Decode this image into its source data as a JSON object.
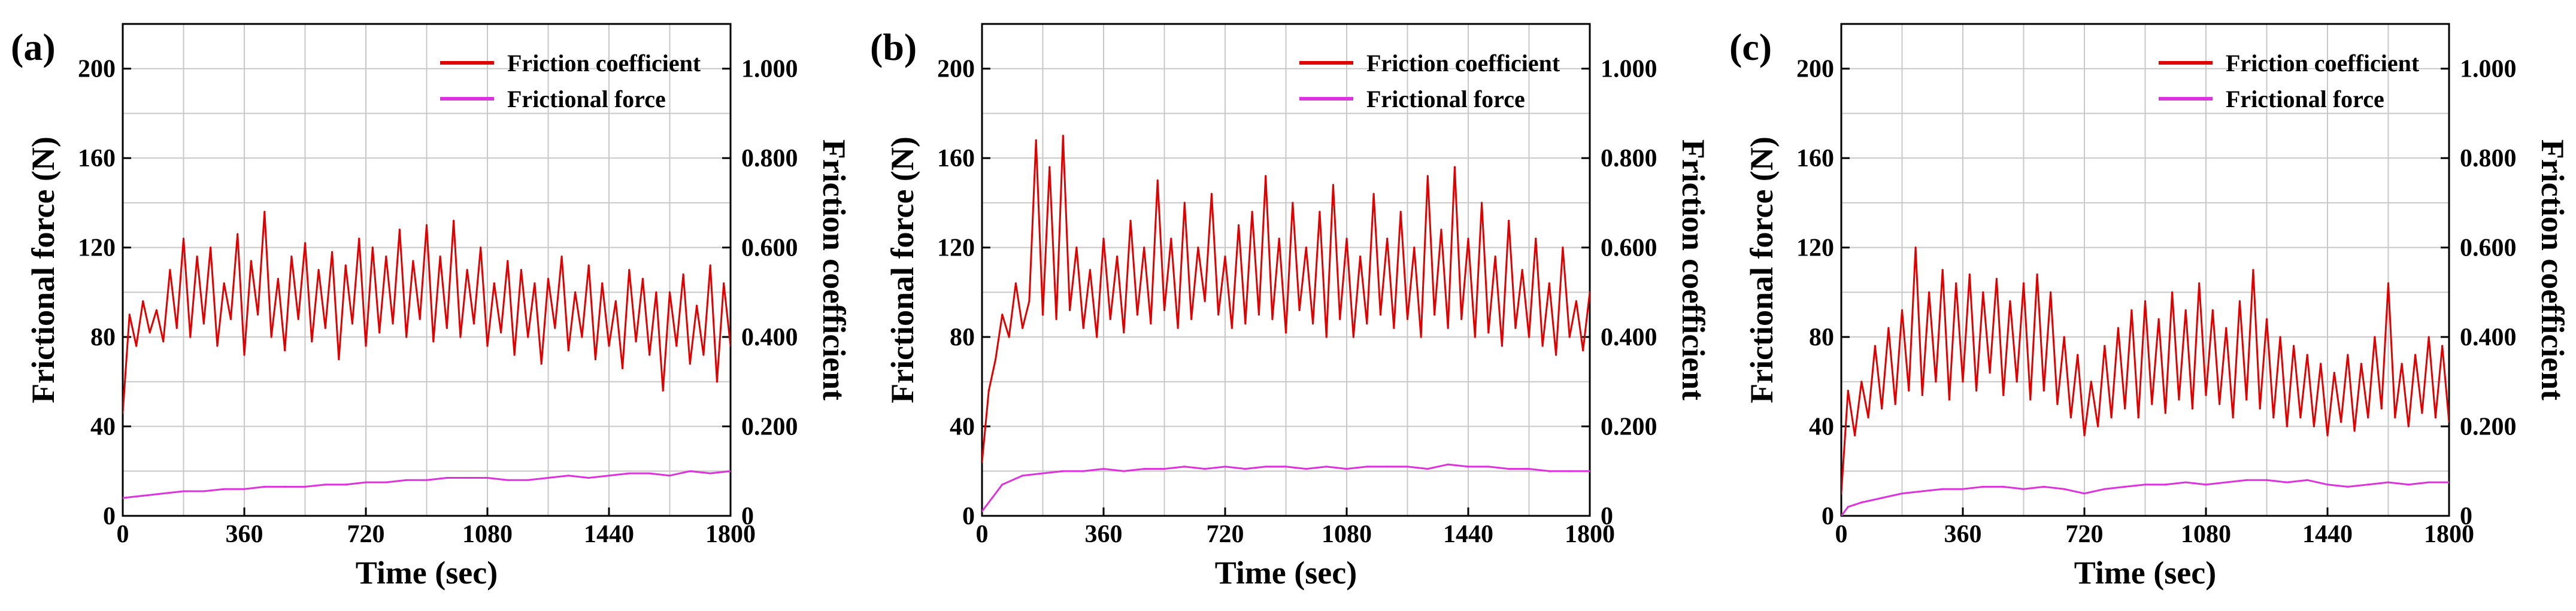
{
  "figure": {
    "panels": [
      "(a)",
      "(b)",
      "(c)"
    ]
  },
  "chart_data": [
    {
      "type": "line",
      "panel_label": "(a)",
      "xlabel": "Time (sec)",
      "ylabel": "Frictional force (N)",
      "y2label": "Friction coefficient",
      "xlim": [
        0,
        1800
      ],
      "ylim": [
        0,
        220
      ],
      "y2lim": [
        0,
        1.1
      ],
      "x_ticks": [
        "0",
        "360",
        "720",
        "1080",
        "1440",
        "1800"
      ],
      "y_ticks": [
        "0",
        "40",
        "80",
        "120",
        "160",
        "200"
      ],
      "y2_ticks": [
        "0",
        "0.200",
        "0.400",
        "0.600",
        "0.800",
        "1.000"
      ],
      "grid": true,
      "legend": {
        "placement": "top-right",
        "entries": [
          "Friction coefficient",
          "Frictional force"
        ]
      },
      "series": [
        {
          "name": "Friction coefficient",
          "color": "#e00000",
          "axis": "right",
          "x": [
            0,
            20,
            40,
            60,
            80,
            100,
            120,
            140,
            160,
            180,
            200,
            220,
            240,
            260,
            280,
            300,
            320,
            340,
            360,
            380,
            400,
            420,
            440,
            460,
            480,
            500,
            520,
            540,
            560,
            580,
            600,
            620,
            640,
            660,
            680,
            700,
            720,
            740,
            760,
            780,
            800,
            820,
            840,
            860,
            880,
            900,
            920,
            940,
            960,
            980,
            1000,
            1020,
            1040,
            1060,
            1080,
            1100,
            1120,
            1140,
            1160,
            1180,
            1200,
            1220,
            1240,
            1260,
            1280,
            1300,
            1320,
            1340,
            1360,
            1380,
            1400,
            1420,
            1440,
            1460,
            1480,
            1500,
            1520,
            1540,
            1560,
            1580,
            1600,
            1620,
            1640,
            1660,
            1680,
            1700,
            1720,
            1740,
            1760,
            1780,
            1800
          ],
          "values": [
            0.23,
            0.45,
            0.38,
            0.48,
            0.41,
            0.46,
            0.39,
            0.55,
            0.42,
            0.62,
            0.4,
            0.58,
            0.43,
            0.6,
            0.38,
            0.52,
            0.44,
            0.63,
            0.36,
            0.57,
            0.45,
            0.68,
            0.4,
            0.53,
            0.37,
            0.58,
            0.44,
            0.61,
            0.39,
            0.55,
            0.42,
            0.59,
            0.35,
            0.56,
            0.43,
            0.62,
            0.38,
            0.6,
            0.41,
            0.58,
            0.43,
            0.64,
            0.4,
            0.57,
            0.44,
            0.65,
            0.39,
            0.58,
            0.42,
            0.66,
            0.4,
            0.55,
            0.43,
            0.6,
            0.38,
            0.52,
            0.41,
            0.57,
            0.36,
            0.55,
            0.4,
            0.52,
            0.34,
            0.53,
            0.42,
            0.58,
            0.37,
            0.5,
            0.4,
            0.56,
            0.35,
            0.52,
            0.38,
            0.48,
            0.33,
            0.55,
            0.39,
            0.53,
            0.36,
            0.5,
            0.28,
            0.5,
            0.38,
            0.54,
            0.34,
            0.47,
            0.36,
            0.56,
            0.3,
            0.52,
            0.38
          ]
        },
        {
          "name": "Frictional force",
          "color": "#dd33dd",
          "axis": "left",
          "x": [
            0,
            60,
            120,
            180,
            240,
            300,
            360,
            420,
            480,
            540,
            600,
            660,
            720,
            780,
            840,
            900,
            960,
            1020,
            1080,
            1140,
            1200,
            1260,
            1320,
            1380,
            1440,
            1500,
            1560,
            1620,
            1680,
            1740,
            1800
          ],
          "values": [
            8,
            9,
            10,
            11,
            11,
            12,
            12,
            13,
            13,
            13,
            14,
            14,
            15,
            15,
            16,
            16,
            17,
            17,
            17,
            16,
            16,
            17,
            18,
            17,
            18,
            19,
            19,
            18,
            20,
            19,
            20
          ]
        }
      ]
    },
    {
      "type": "line",
      "panel_label": "(b)",
      "xlabel": "Time (sec)",
      "ylabel": "Frictional force (N)",
      "y2label": "Friction coefficient",
      "xlim": [
        0,
        1800
      ],
      "ylim": [
        0,
        220
      ],
      "y2lim": [
        0,
        1.1
      ],
      "x_ticks": [
        "0",
        "360",
        "720",
        "1080",
        "1440",
        "1800"
      ],
      "y_ticks": [
        "0",
        "40",
        "80",
        "120",
        "160",
        "200"
      ],
      "y2_ticks": [
        "0",
        "0.200",
        "0.400",
        "0.600",
        "0.800",
        "1.000"
      ],
      "grid": true,
      "legend": {
        "placement": "top-right",
        "entries": [
          "Friction coefficient",
          "Frictional force"
        ]
      },
      "series": [
        {
          "name": "Friction coefficient",
          "color": "#e00000",
          "axis": "right",
          "x": [
            0,
            20,
            40,
            60,
            80,
            100,
            120,
            140,
            160,
            180,
            200,
            220,
            240,
            260,
            280,
            300,
            320,
            340,
            360,
            380,
            400,
            420,
            440,
            460,
            480,
            500,
            520,
            540,
            560,
            580,
            600,
            620,
            640,
            660,
            680,
            700,
            720,
            740,
            760,
            780,
            800,
            820,
            840,
            860,
            880,
            900,
            920,
            940,
            960,
            980,
            1000,
            1020,
            1040,
            1060,
            1080,
            1100,
            1120,
            1140,
            1160,
            1180,
            1200,
            1220,
            1240,
            1260,
            1280,
            1300,
            1320,
            1340,
            1360,
            1380,
            1400,
            1420,
            1440,
            1460,
            1480,
            1500,
            1520,
            1540,
            1560,
            1580,
            1600,
            1620,
            1640,
            1660,
            1680,
            1700,
            1720,
            1740,
            1760,
            1780,
            1800
          ],
          "values": [
            0.12,
            0.28,
            0.35,
            0.45,
            0.4,
            0.52,
            0.42,
            0.48,
            0.84,
            0.45,
            0.78,
            0.44,
            0.85,
            0.46,
            0.6,
            0.42,
            0.55,
            0.4,
            0.62,
            0.44,
            0.58,
            0.41,
            0.66,
            0.45,
            0.6,
            0.43,
            0.75,
            0.46,
            0.62,
            0.42,
            0.7,
            0.44,
            0.6,
            0.48,
            0.72,
            0.45,
            0.58,
            0.42,
            0.65,
            0.43,
            0.68,
            0.45,
            0.76,
            0.44,
            0.62,
            0.41,
            0.7,
            0.46,
            0.6,
            0.43,
            0.68,
            0.4,
            0.74,
            0.44,
            0.62,
            0.4,
            0.58,
            0.43,
            0.72,
            0.45,
            0.62,
            0.42,
            0.68,
            0.44,
            0.6,
            0.4,
            0.76,
            0.45,
            0.64,
            0.42,
            0.78,
            0.44,
            0.62,
            0.4,
            0.7,
            0.41,
            0.58,
            0.38,
            0.66,
            0.42,
            0.55,
            0.4,
            0.62,
            0.38,
            0.52,
            0.36,
            0.6,
            0.4,
            0.48,
            0.37,
            0.5
          ]
        },
        {
          "name": "Frictional force",
          "color": "#dd33dd",
          "axis": "left",
          "x": [
            0,
            30,
            60,
            120,
            180,
            240,
            300,
            360,
            420,
            480,
            540,
            600,
            660,
            720,
            780,
            840,
            900,
            960,
            1020,
            1080,
            1140,
            1200,
            1260,
            1320,
            1380,
            1440,
            1500,
            1560,
            1620,
            1680,
            1740,
            1800
          ],
          "values": [
            2,
            8,
            14,
            18,
            19,
            20,
            20,
            21,
            20,
            21,
            21,
            22,
            21,
            22,
            21,
            22,
            22,
            21,
            22,
            21,
            22,
            22,
            22,
            21,
            23,
            22,
            22,
            21,
            21,
            20,
            20,
            20
          ]
        }
      ]
    },
    {
      "type": "line",
      "panel_label": "(c)",
      "xlabel": "Time (sec)",
      "ylabel": "Frictional force (N)",
      "y2label": "Friction coefficient",
      "xlim": [
        0,
        1800
      ],
      "ylim": [
        0,
        220
      ],
      "y2lim": [
        0,
        1.1
      ],
      "x_ticks": [
        "0",
        "360",
        "720",
        "1080",
        "1440",
        "1800"
      ],
      "y_ticks": [
        "0",
        "40",
        "80",
        "120",
        "160",
        "200"
      ],
      "y2_ticks": [
        "0",
        "0.200",
        "0.400",
        "0.600",
        "0.800",
        "1.000"
      ],
      "grid": true,
      "legend": {
        "placement": "top-right",
        "entries": [
          "Friction coefficient",
          "Frictional force"
        ]
      },
      "series": [
        {
          "name": "Friction coefficient",
          "color": "#e00000",
          "axis": "right",
          "x": [
            0,
            20,
            40,
            60,
            80,
            100,
            120,
            140,
            160,
            180,
            200,
            220,
            240,
            260,
            280,
            300,
            320,
            340,
            360,
            380,
            400,
            420,
            440,
            460,
            480,
            500,
            520,
            540,
            560,
            580,
            600,
            620,
            640,
            660,
            680,
            700,
            720,
            740,
            760,
            780,
            800,
            820,
            840,
            860,
            880,
            900,
            920,
            940,
            960,
            980,
            1000,
            1020,
            1040,
            1060,
            1080,
            1100,
            1120,
            1140,
            1160,
            1180,
            1200,
            1220,
            1240,
            1260,
            1280,
            1300,
            1320,
            1340,
            1360,
            1380,
            1400,
            1420,
            1440,
            1460,
            1480,
            1500,
            1520,
            1540,
            1560,
            1580,
            1600,
            1620,
            1640,
            1660,
            1680,
            1700,
            1720,
            1740,
            1760,
            1780,
            1800
          ],
          "values": [
            0.05,
            0.28,
            0.18,
            0.3,
            0.22,
            0.38,
            0.24,
            0.42,
            0.25,
            0.46,
            0.28,
            0.6,
            0.27,
            0.5,
            0.3,
            0.55,
            0.26,
            0.52,
            0.3,
            0.54,
            0.28,
            0.5,
            0.32,
            0.53,
            0.27,
            0.48,
            0.3,
            0.52,
            0.26,
            0.54,
            0.28,
            0.5,
            0.25,
            0.4,
            0.22,
            0.36,
            0.18,
            0.3,
            0.2,
            0.38,
            0.22,
            0.42,
            0.24,
            0.46,
            0.22,
            0.48,
            0.25,
            0.44,
            0.23,
            0.5,
            0.26,
            0.46,
            0.24,
            0.52,
            0.27,
            0.46,
            0.25,
            0.42,
            0.22,
            0.48,
            0.26,
            0.55,
            0.24,
            0.44,
            0.22,
            0.4,
            0.2,
            0.38,
            0.22,
            0.36,
            0.2,
            0.34,
            0.18,
            0.32,
            0.21,
            0.36,
            0.19,
            0.34,
            0.22,
            0.4,
            0.24,
            0.52,
            0.22,
            0.34,
            0.2,
            0.36,
            0.23,
            0.4,
            0.22,
            0.38,
            0.21
          ]
        },
        {
          "name": "Frictional force",
          "color": "#dd33dd",
          "axis": "left",
          "x": [
            0,
            20,
            40,
            60,
            120,
            180,
            240,
            300,
            360,
            420,
            480,
            540,
            600,
            660,
            720,
            780,
            840,
            900,
            960,
            1020,
            1080,
            1140,
            1200,
            1260,
            1320,
            1380,
            1440,
            1500,
            1560,
            1620,
            1680,
            1740,
            1800
          ],
          "values": [
            0,
            4,
            5,
            6,
            8,
            10,
            11,
            12,
            12,
            13,
            13,
            12,
            13,
            12,
            10,
            12,
            13,
            14,
            14,
            15,
            14,
            15,
            16,
            16,
            15,
            16,
            14,
            13,
            14,
            15,
            14,
            15,
            15
          ]
        }
      ]
    }
  ]
}
